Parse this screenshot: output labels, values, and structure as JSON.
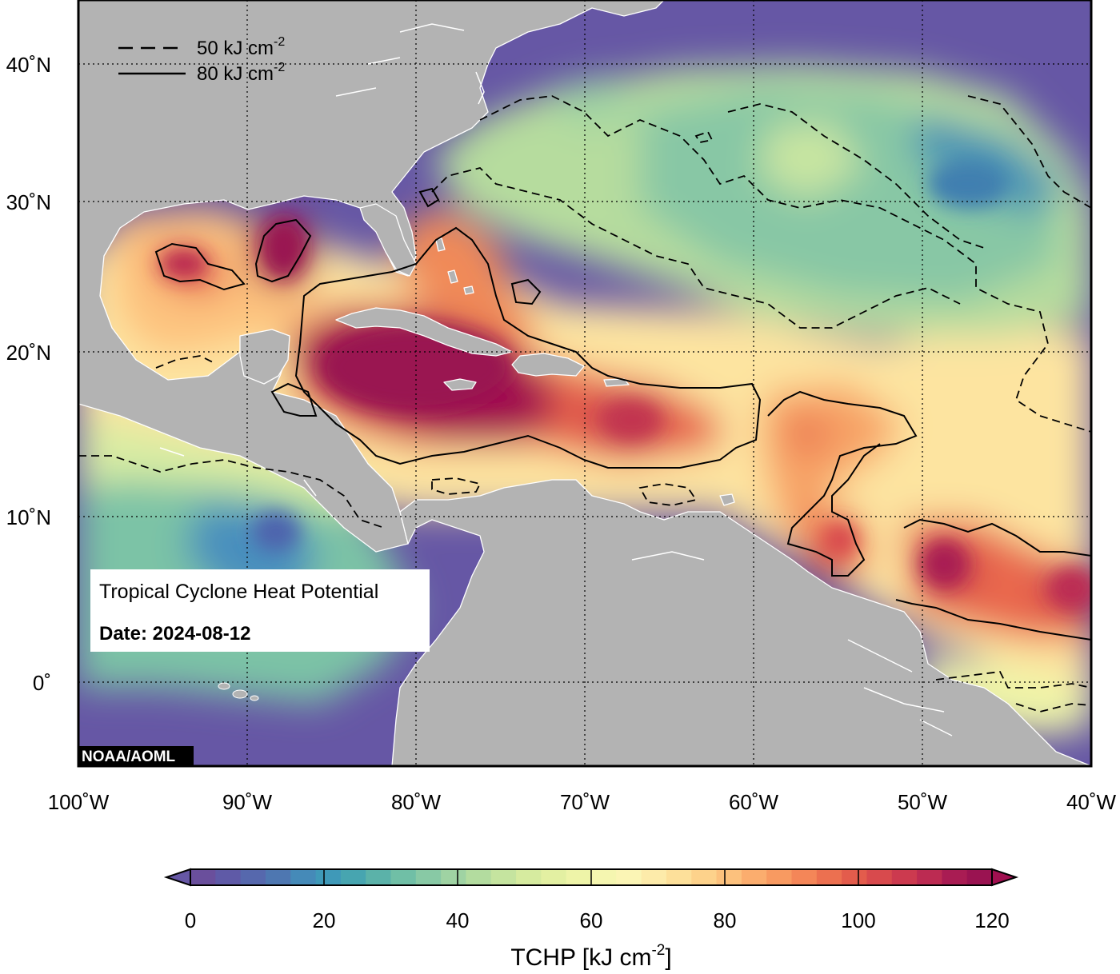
{
  "map": {
    "title": "Tropical Cyclone Heat Potential",
    "date_label": "Date: 2024-08-12",
    "credit": "NOAA/AOML",
    "extent": {
      "lon_min": -100,
      "lon_max": -40,
      "lat_min": -5,
      "lat_max": 44
    },
    "lon_ticks": [
      {
        "value": -100,
        "label": "100˚W"
      },
      {
        "value": -90,
        "label": "90˚W"
      },
      {
        "value": -80,
        "label": "80˚W"
      },
      {
        "value": -70,
        "label": "70˚W"
      },
      {
        "value": -60,
        "label": "60˚W"
      },
      {
        "value": -50,
        "label": "50˚W"
      },
      {
        "value": -40,
        "label": "40˚W"
      }
    ],
    "lat_ticks": [
      {
        "value": 0,
        "label": "0˚"
      },
      {
        "value": 10,
        "label": "10˚N"
      },
      {
        "value": 20,
        "label": "20˚N"
      },
      {
        "value": 30,
        "label": "30˚N"
      },
      {
        "value": 40,
        "label": "40˚N"
      }
    ],
    "contour_legend": [
      {
        "style": "dashed",
        "value_label": "50 kJ cm",
        "exponent": "-2"
      },
      {
        "style": "solid",
        "value_label": "80 kJ cm",
        "exponent": "-2"
      }
    ],
    "colors": {
      "land": "#b3b3b3",
      "coast": "#ffffff",
      "cold_ocean": "#6657a5"
    }
  },
  "colorbar": {
    "title_main": "TCHP [kJ cm",
    "title_exp": "-2",
    "title_end": "]",
    "min": 0,
    "max": 120,
    "ticks": [
      0,
      20,
      40,
      60,
      80,
      100,
      120
    ],
    "tick_labels": [
      "0",
      "20",
      "40",
      "60",
      "80",
      "100",
      "120"
    ],
    "colors": [
      "#6a4f9c",
      "#5f5aa7",
      "#5668ad",
      "#4e77b1",
      "#458ab8",
      "#3f99b8",
      "#47a5b0",
      "#5bb2a9",
      "#70bfa6",
      "#88c9a5",
      "#9fd3a3",
      "#b3dc9f",
      "#c5e49f",
      "#d6eb9f",
      "#e3f0a2",
      "#eef4a8",
      "#f5f6b0",
      "#fbf5b5",
      "#fdebaa",
      "#fde09a",
      "#fdd28b",
      "#fcc17d",
      "#fbad6e",
      "#f89a61",
      "#f48658",
      "#ec7050",
      "#e35c4c",
      "#d84a4d",
      "#cc3a4f",
      "#bc2b52",
      "#a91c53",
      "#9a1351"
    ],
    "under_color": "#6657a5",
    "over_color": "#a01050"
  }
}
